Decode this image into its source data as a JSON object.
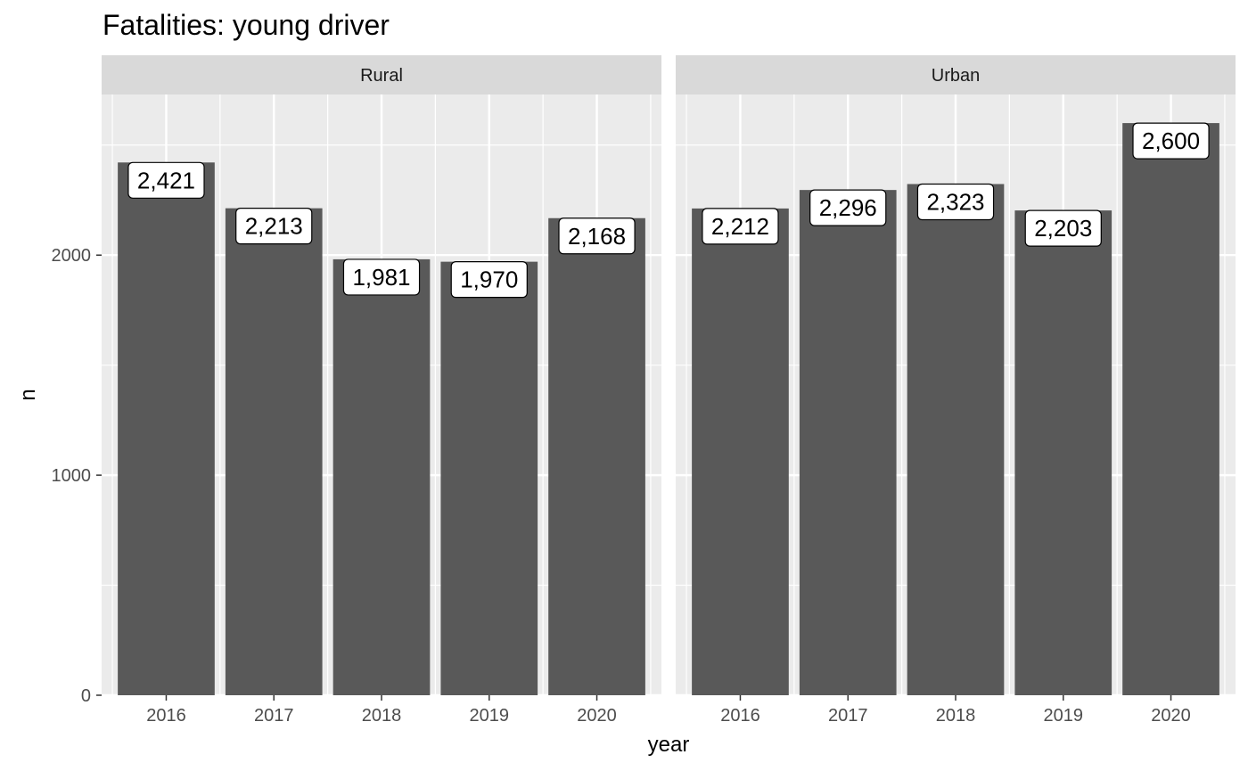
{
  "chart_data": {
    "type": "bar",
    "title": "Fatalities: young driver",
    "xlabel": "year",
    "ylabel": "n",
    "categories": [
      "2016",
      "2017",
      "2018",
      "2019",
      "2020"
    ],
    "ylim": [
      0,
      2730
    ],
    "yticks": [
      0,
      1000,
      2000
    ],
    "grid": true,
    "legend": "none",
    "colors": {
      "bar": "#595959",
      "panel_bg": "#ebebeb",
      "strip_bg": "#d9d9d9",
      "grid": "#ffffff"
    },
    "panels": [
      {
        "name": "Rural",
        "values": [
          2421,
          2213,
          1981,
          1970,
          2168
        ],
        "labels": [
          "2,421",
          "2,213",
          "1,981",
          "1,970",
          "2,168"
        ]
      },
      {
        "name": "Urban",
        "values": [
          2212,
          2296,
          2323,
          2203,
          2600
        ],
        "labels": [
          "2,212",
          "2,296",
          "2,323",
          "2,203",
          "2,600"
        ]
      }
    ]
  }
}
